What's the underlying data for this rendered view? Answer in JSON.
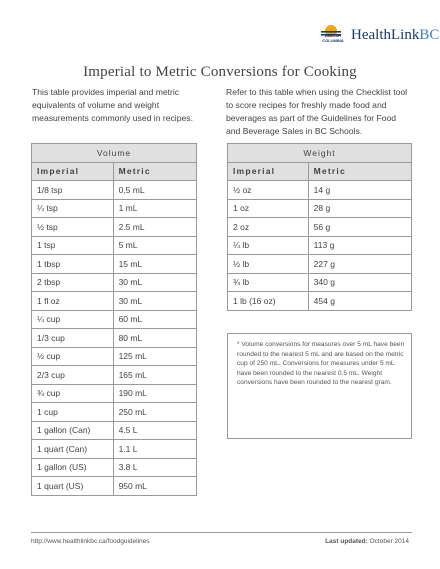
{
  "logo": {
    "bc_text": "BRITISH COLUMBIA",
    "brand_name": "HealthLink",
    "brand_suffix": "BC",
    "sun_color": "#f2a900",
    "wave_color": "#1a3a6b"
  },
  "title": "Imperial to Metric Conversions for Cooking",
  "intro_left": "This table provides imperial and metric equivalents of volume and weight measurements commonly used in recipes.",
  "intro_right": "Refer to this table when using the Checklist tool to score recipes for freshly made food and beverages as part of the Guidelines for Food and Beverage Sales in BC Schools.",
  "volume_table": {
    "title": "Volume",
    "headers": [
      "Imperial",
      "Metric"
    ],
    "rows": [
      [
        "1/8 tsp",
        "0.5 mL"
      ],
      [
        "¼ tsp",
        "1 mL"
      ],
      [
        "½ tsp",
        "2.5 mL"
      ],
      [
        "1 tsp",
        "5 mL"
      ],
      [
        "1 tbsp",
        "15 mL"
      ],
      [
        "2 tbsp",
        "30 mL"
      ],
      [
        "1 fl oz",
        "30 mL"
      ],
      [
        "¼ cup",
        "60 mL"
      ],
      [
        "1/3 cup",
        "80 mL"
      ],
      [
        "½ cup",
        "125 mL"
      ],
      [
        "2/3 cup",
        "165 mL"
      ],
      [
        "¾ cup",
        "190 mL"
      ],
      [
        "1 cup",
        "250 mL"
      ],
      [
        "1 gallon (Can)",
        "4.5 L"
      ],
      [
        "1 quart (Can)",
        "1.1 L"
      ],
      [
        "1 gallon (US)",
        "3.8 L"
      ],
      [
        "1 quart (US)",
        "950 mL"
      ]
    ]
  },
  "weight_table": {
    "title": "Weight",
    "headers": [
      "Imperial",
      "Metric"
    ],
    "rows": [
      [
        "½ oz",
        "14 g"
      ],
      [
        "1 oz",
        "28 g"
      ],
      [
        "2 oz",
        "56 g"
      ],
      [
        "¼ lb",
        "113 g"
      ],
      [
        "½ lb",
        "227 g"
      ],
      [
        "¾ lb",
        "340 g"
      ],
      [
        "1 lb (16 oz)",
        "454 g"
      ]
    ]
  },
  "note": "* Volume conversions for measures over 5 mL have been rounded to the nearest 5 mL and are based on the metric cup of 250 mL. Conversions for measures under 5 mL have been rounded to the nearest 0.5 mL. Weight conversions have been rounded to the nearest gram.",
  "footer": {
    "url": "http://www.healthlinkbc.ca/foodguidelines",
    "updated_label": "Last updated:",
    "updated_date": "October 2014"
  }
}
